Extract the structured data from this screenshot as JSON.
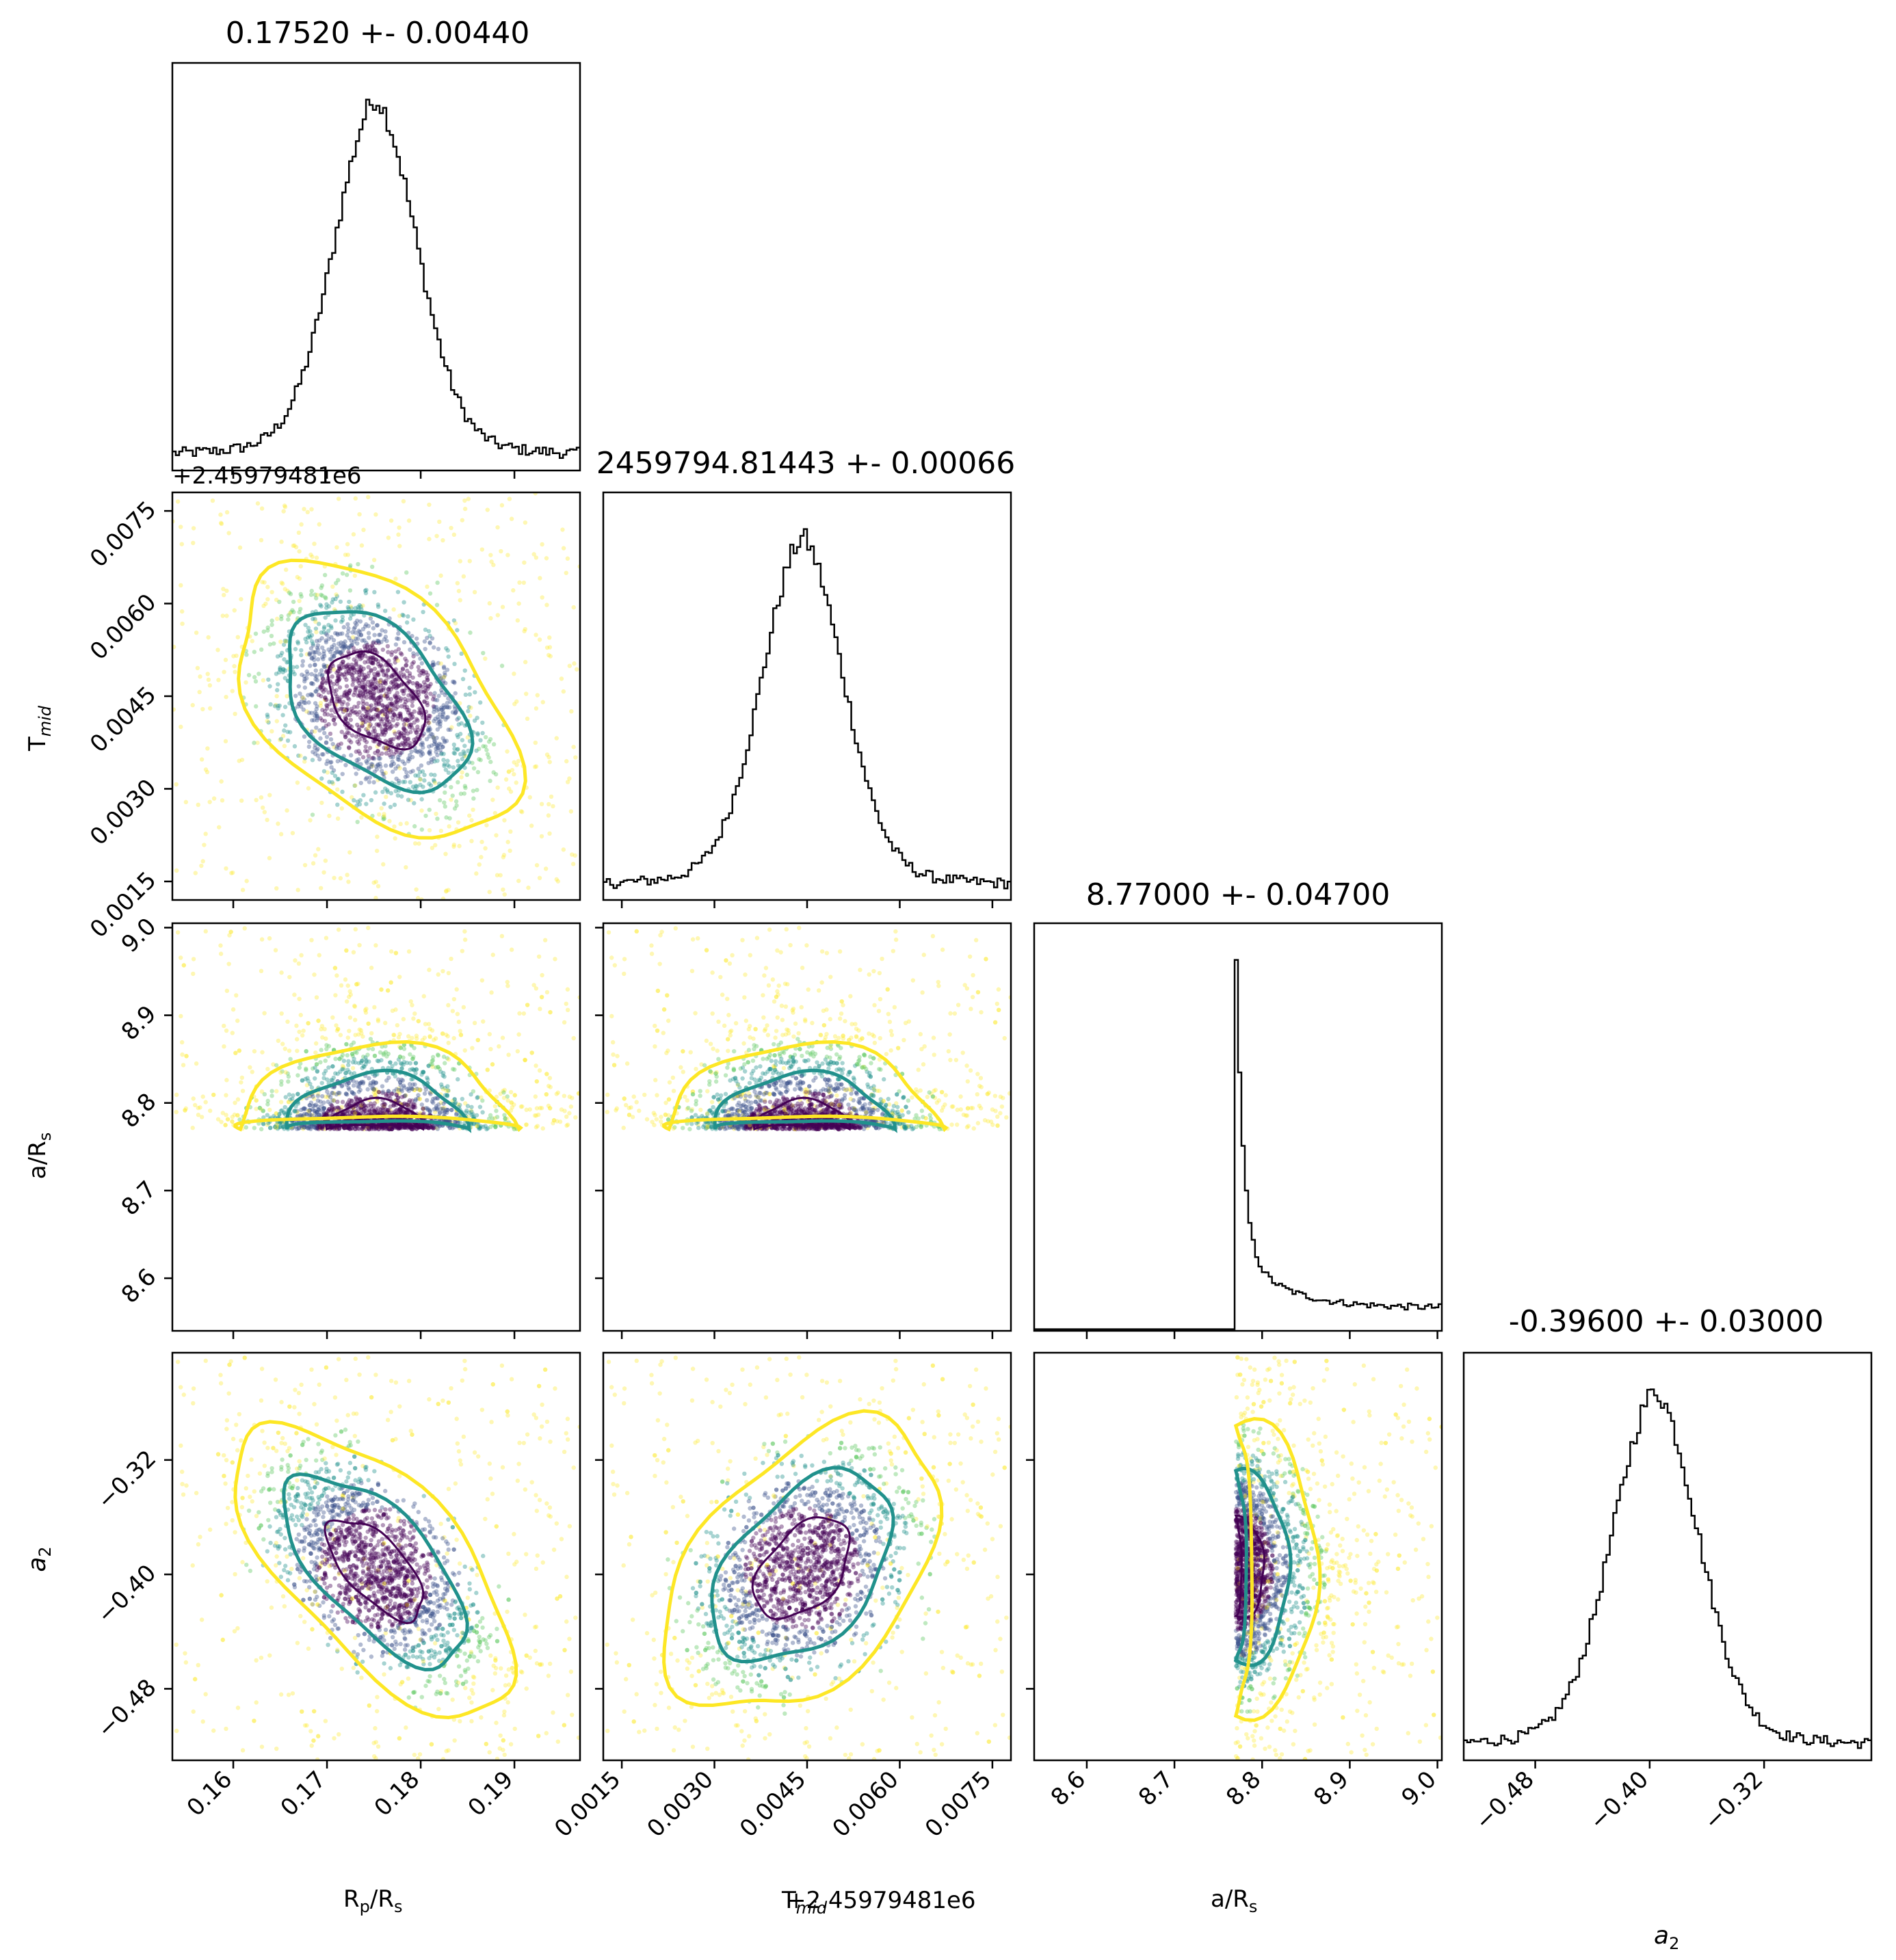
{
  "figure": {
    "titles": [
      "0.17520 +- 0.00440",
      "2459794.81443 +- 0.00066",
      "8.77000 +- 0.04700",
      "-0.39600 +- 0.03000"
    ],
    "offset_label": "+2.45979481e6",
    "xlabels": [
      "R",
      "T",
      "a/R",
      "a"
    ],
    "ylabels": [
      "",
      "T",
      "a/R",
      "a"
    ]
  },
  "chart_data": {
    "type": "scatter",
    "subtype": "corner-plot",
    "parameters": [
      {
        "name": "Rp/Rs",
        "range": [
          0.1535,
          0.197
        ],
        "ticks": [
          0.16,
          0.17,
          0.18,
          0.19
        ],
        "tick_labels": [
          "0.16",
          "0.17",
          "0.18",
          "0.19"
        ],
        "median": 0.1752,
        "sigma": 0.0044
      },
      {
        "name": "Tmid",
        "range": [
          0.0012,
          0.0078
        ],
        "ticks": [
          0.0015,
          0.003,
          0.0045,
          0.006,
          0.0075
        ],
        "tick_labels": [
          "0.0015",
          "0.0030",
          "0.0045",
          "0.0060",
          "0.0075"
        ],
        "median": 0.00443,
        "sigma": 0.00066
      },
      {
        "name": "a/Rs",
        "range": [
          8.54,
          9.005
        ],
        "ticks": [
          8.6,
          8.7,
          8.8,
          8.9,
          9.0
        ],
        "tick_labels": [
          "8.6",
          "8.7",
          "8.8",
          "8.9",
          "9.0"
        ],
        "median": 8.77,
        "sigma": 0.047,
        "lower_bound": 8.77
      },
      {
        "name": "a2",
        "range": [
          -0.53,
          -0.245
        ],
        "ticks": [
          -0.48,
          -0.4,
          -0.32
        ],
        "tick_labels": [
          "−0.48",
          "−0.40",
          "−0.32"
        ],
        "median": -0.396,
        "sigma": 0.03
      }
    ],
    "correlations": {
      "1-0": -0.45,
      "3-0": -0.65,
      "3-1": 0.45,
      "2-0": 0.0,
      "2-1": 0.0,
      "3-2": 0.0
    },
    "contour_colors": [
      "#440154",
      "#21918c",
      "#fde725"
    ],
    "point_colors": [
      "#440154",
      "#3b528b",
      "#21918c",
      "#5ec962",
      "#fde725"
    ],
    "grid": false
  }
}
